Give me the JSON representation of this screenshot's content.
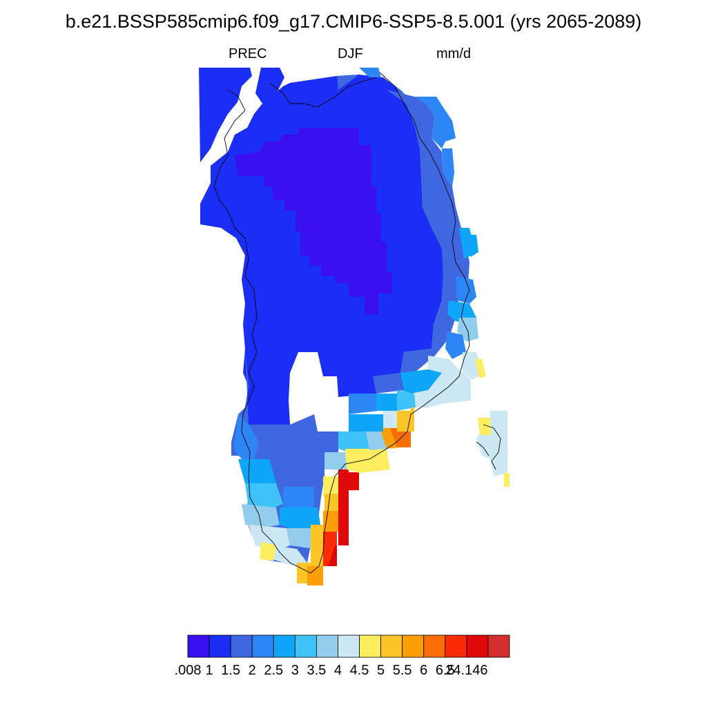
{
  "title": "b.e21.BSSP585cmip6.f09_g17.CMIP6-SSP5-8.5.001 (yrs 2065-2089)",
  "variable": "PREC",
  "season": "DJF",
  "units": "mm/d",
  "colorbar": {
    "labels": [
      ".008",
      "1",
      "1.5",
      "2",
      "2.5",
      "3",
      "3.5",
      "4",
      "4.5",
      "5",
      "5.5",
      "6",
      "6.5",
      "24.146"
    ],
    "colors": [
      "#3b10f0",
      "#1a2ef5",
      "#3f68e0",
      "#2d86f5",
      "#0ea6f8",
      "#3ec2f8",
      "#93cdee",
      "#cce8f5",
      "#fdee5f",
      "#fdc526",
      "#fc9f06",
      "#fb6e06",
      "#fb2b06",
      "#e00909",
      "#d32f2f"
    ]
  }
}
